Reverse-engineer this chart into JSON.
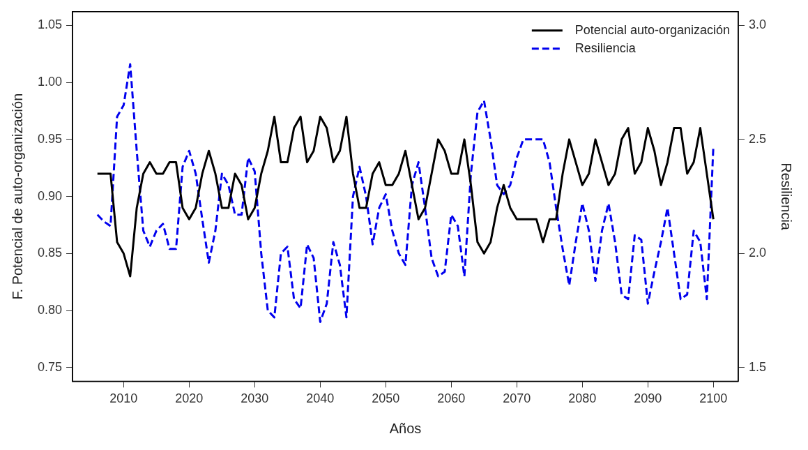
{
  "chart_data": {
    "type": "line",
    "xlabel": "Años",
    "ylabel": "F. Potencial de auto-organización",
    "y2label": "Resiliencia",
    "x": [
      2006,
      2007,
      2008,
      2009,
      2010,
      2011,
      2012,
      2013,
      2014,
      2015,
      2016,
      2017,
      2018,
      2019,
      2020,
      2021,
      2022,
      2023,
      2024,
      2025,
      2026,
      2027,
      2028,
      2029,
      2030,
      2031,
      2032,
      2033,
      2034,
      2035,
      2036,
      2037,
      2038,
      2039,
      2040,
      2041,
      2042,
      2043,
      2044,
      2045,
      2046,
      2047,
      2048,
      2049,
      2050,
      2051,
      2052,
      2053,
      2054,
      2055,
      2056,
      2057,
      2058,
      2059,
      2060,
      2061,
      2062,
      2063,
      2064,
      2065,
      2066,
      2067,
      2068,
      2069,
      2070,
      2071,
      2072,
      2073,
      2074,
      2075,
      2076,
      2077,
      2078,
      2079,
      2080,
      2081,
      2082,
      2083,
      2084,
      2085,
      2086,
      2087,
      2088,
      2089,
      2090,
      2091,
      2092,
      2093,
      2094,
      2095,
      2096,
      2097,
      2098,
      2099,
      2100
    ],
    "series": [
      {
        "name": "Potencial auto-organización",
        "color": "#000000",
        "line_style": "solid",
        "values": [
          0.92,
          0.92,
          0.92,
          0.86,
          0.85,
          0.83,
          0.89,
          0.92,
          0.93,
          0.92,
          0.92,
          0.93,
          0.93,
          0.89,
          0.88,
          0.89,
          0.92,
          0.94,
          0.92,
          0.89,
          0.89,
          0.92,
          0.91,
          0.88,
          0.89,
          0.92,
          0.94,
          0.97,
          0.93,
          0.93,
          0.96,
          0.97,
          0.93,
          0.94,
          0.97,
          0.96,
          0.93,
          0.94,
          0.97,
          0.92,
          0.89,
          0.89,
          0.92,
          0.93,
          0.91,
          0.91,
          0.92,
          0.94,
          0.91,
          0.88,
          0.89,
          0.92,
          0.95,
          0.94,
          0.92,
          0.92,
          0.95,
          0.91,
          0.86,
          0.85,
          0.86,
          0.89,
          0.91,
          0.89,
          0.88,
          0.88,
          0.88,
          0.88,
          0.86,
          0.88,
          0.88,
          0.92,
          0.95,
          0.93,
          0.91,
          0.92,
          0.95,
          0.93,
          0.91,
          0.92,
          0.95,
          0.96,
          0.92,
          0.93,
          0.96,
          0.94,
          0.91,
          0.93,
          0.96,
          0.96,
          0.92,
          0.93,
          0.96,
          0.92,
          0.88
        ]
      },
      {
        "name": "Resiliencia",
        "color": "#0000ee",
        "line_style": "dashed",
        "axis": "y2",
        "values": [
          2.17,
          2.14,
          2.12,
          2.6,
          2.65,
          2.83,
          2.45,
          2.1,
          2.03,
          2.1,
          2.13,
          2.02,
          2.02,
          2.38,
          2.45,
          2.35,
          2.15,
          1.96,
          2.1,
          2.35,
          2.3,
          2.17,
          2.17,
          2.42,
          2.36,
          2.0,
          1.75,
          1.72,
          2.0,
          2.03,
          1.8,
          1.76,
          2.04,
          1.98,
          1.7,
          1.78,
          2.05,
          1.95,
          1.72,
          2.25,
          2.38,
          2.25,
          2.04,
          2.2,
          2.26,
          2.1,
          2.0,
          1.95,
          2.3,
          2.4,
          2.2,
          1.98,
          1.9,
          1.92,
          2.17,
          2.12,
          1.9,
          2.35,
          2.62,
          2.67,
          2.5,
          2.3,
          2.26,
          2.3,
          2.42,
          2.5,
          2.5,
          2.5,
          2.5,
          2.4,
          2.2,
          2.02,
          1.86,
          2.05,
          2.22,
          2.1,
          1.88,
          2.1,
          2.22,
          2.05,
          1.82,
          1.8,
          2.08,
          2.06,
          1.78,
          1.92,
          2.05,
          2.2,
          2.0,
          1.8,
          1.82,
          2.1,
          2.05,
          1.8,
          2.47
        ]
      }
    ],
    "xlim": [
      2002.2,
      2103.8
    ],
    "xticks": [
      2010,
      2020,
      2030,
      2040,
      2050,
      2060,
      2070,
      2080,
      2090,
      2100
    ],
    "ylim": [
      0.738,
      1.062
    ],
    "yticks": [
      0.75,
      {
        "value": 0.8,
        "label": "0.80"
      },
      0.85,
      {
        "value": 0.9,
        "label": "0.90"
      },
      0.95,
      {
        "value": 1,
        "label": "1.00"
      },
      1.05
    ],
    "y2lim": [
      1.44,
      3.06
    ],
    "y2ticks": [
      1.5,
      {
        "value": 2,
        "label": "2.0"
      },
      2.5,
      {
        "value": 3,
        "label": "3.0"
      }
    ],
    "legend": "top right",
    "grid": false,
    "marker": "none"
  }
}
